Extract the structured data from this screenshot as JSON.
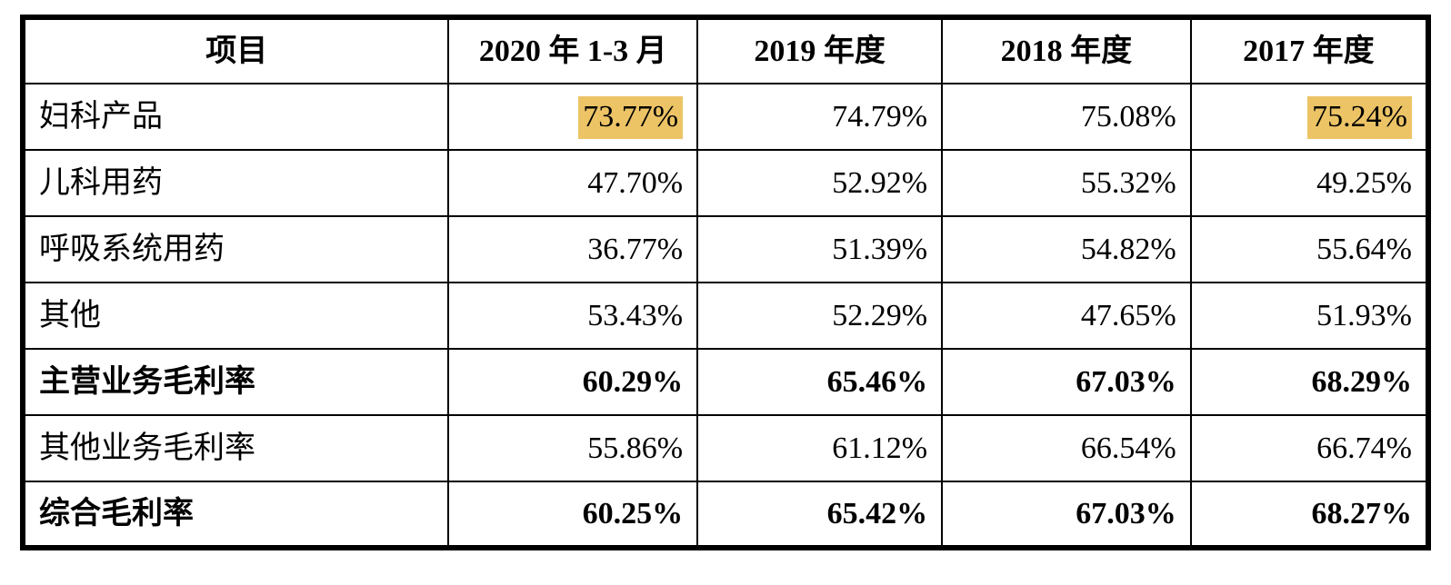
{
  "table": {
    "name": "gross-margin-by-product-table",
    "columns": [
      "项目",
      "2020 年 1-3 月",
      "2019 年度",
      "2018 年度",
      "2017 年度"
    ],
    "rows": [
      {
        "label": "妇科产品",
        "values": [
          "73.77%",
          "74.79%",
          "75.08%",
          "75.24%"
        ],
        "bold": false,
        "highlight": [
          0,
          3
        ]
      },
      {
        "label": "儿科用药",
        "values": [
          "47.70%",
          "52.92%",
          "55.32%",
          "49.25%"
        ],
        "bold": false,
        "highlight": []
      },
      {
        "label": "呼吸系统用药",
        "values": [
          "36.77%",
          "51.39%",
          "54.82%",
          "55.64%"
        ],
        "bold": false,
        "highlight": []
      },
      {
        "label": "其他",
        "values": [
          "53.43%",
          "52.29%",
          "47.65%",
          "51.93%"
        ],
        "bold": false,
        "highlight": []
      },
      {
        "label": "主营业务毛利率",
        "values": [
          "60.29%",
          "65.46%",
          "67.03%",
          "68.29%"
        ],
        "bold": true,
        "highlight": []
      },
      {
        "label": "其他业务毛利率",
        "values": [
          "55.86%",
          "61.12%",
          "66.54%",
          "66.74%"
        ],
        "bold": false,
        "highlight": []
      },
      {
        "label": "综合毛利率",
        "values": [
          "60.25%",
          "65.42%",
          "67.03%",
          "68.27%"
        ],
        "bold": true,
        "highlight": []
      }
    ],
    "colors": {
      "highlight": "#ecc466",
      "border": "#000000",
      "text": "#000000",
      "background": "#ffffff"
    }
  }
}
